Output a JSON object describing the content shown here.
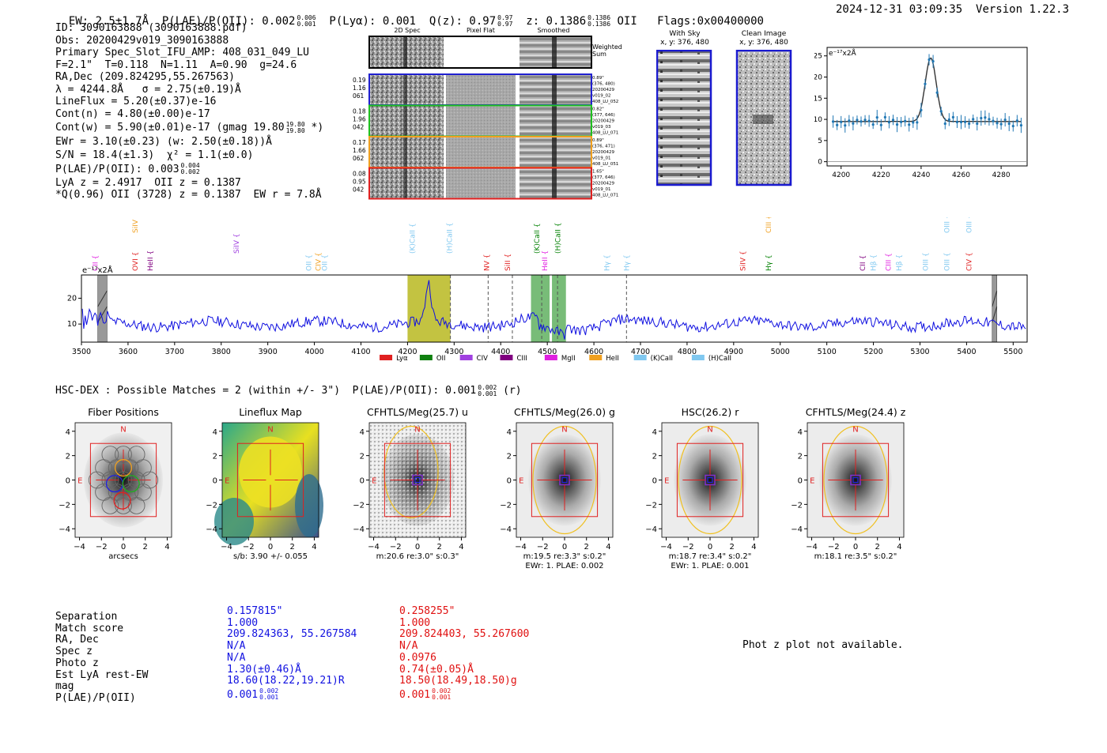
{
  "header": {
    "ew": "EW: 2.5±1.7Å",
    "plae_label": "P(LAE)/P(OII): 0.002",
    "plae_hi": "0.006",
    "plae_lo": "0.001",
    "plya": "P(Lyα): 0.001",
    "qz_label": "Q(z): 0.97",
    "qz_hi": "0.97",
    "qz_lo": "0.97",
    "z_label": "z: 0.1386",
    "z_hi": "0.1386",
    "z_lo": "0.1386",
    "z_line": "OII",
    "flags": "Flags:0x00400000",
    "datetime": "2024-12-31 03:09:35",
    "version": "Version 1.22.3"
  },
  "info": {
    "id": "ID: 3090163888 (3090163888.pdf)",
    "obs": "Obs: 20200429v019_3090163888",
    "primary": "Primary Spec_Slot_IFU_AMP: 408_031_049_LU",
    "params": "F=2.1\"  T=0.118  N=1.11  A=0.90  g=24.6",
    "radec": "RA,Dec (209.824295,55.267563)",
    "lambda": "λ = 4244.8Å   σ = 2.75(±0.19)Å",
    "lineflux": "LineFlux = 5.20(±0.37)e-16",
    "contn": "Cont(n) = 4.80(±0.00)e-17",
    "contw": "Cont(w) = 5.90(±0.01)e-17 (gmag 19.80",
    "contw_hi": "19.80",
    "contw_lo": "19.80",
    "contw_end": "*)",
    "ewr": "EWr = 3.10(±0.23) (w: 2.50(±0.18))Å",
    "sn": "S/N = 18.4(±1.3)  χ² = 1.1(±0.0)",
    "plae": "P(LAE)/P(OII): 0.003",
    "plae_hi": "0.004",
    "plae_lo": "0.002",
    "lya": "LyA z = 2.4917  OII z = 0.1387",
    "q": "*Q(0.96) OII (3728) z = 0.1387  EW r = 7.8Å"
  },
  "cutouts": {
    "col_titles": [
      "2D Spec",
      "Pixel Flat",
      "Smoothed"
    ],
    "weighted": [
      "Weighted",
      "Sum"
    ],
    "rows": [
      {
        "nums": [
          "0.19",
          "1.16",
          "061"
        ],
        "meta": [
          "0.89\"",
          "(376, 480)",
          "20200429",
          "v019_02",
          "408_LU_052"
        ],
        "color": "#2020d0"
      },
      {
        "nums": [
          "0.18",
          "1.96",
          "042"
        ],
        "meta": [
          "0.82\"",
          "(377, 646)",
          "20200429",
          "v019_03",
          "408_LU_071"
        ],
        "color": "#20c020"
      },
      {
        "nums": [
          "0.17",
          "1.66",
          "062"
        ],
        "meta": [
          "0.89\"",
          "(376, 471)",
          "20200429",
          "v019_01",
          "408_LU_051"
        ],
        "color": "#f0a020"
      },
      {
        "nums": [
          "0.08",
          "0.95",
          "042"
        ],
        "meta": [
          "1.65\"",
          "(377, 646)",
          "20200429",
          "v019_01",
          "408_LU_071"
        ],
        "color": "#e02020"
      }
    ],
    "with_sky": [
      "With Sky",
      "x, y: 376, 480"
    ],
    "clean": [
      "Clean Image",
      "x, y: 376, 480"
    ]
  },
  "zoom_plot": {
    "unit": "e⁻¹⁷x2Å",
    "xticks": [
      "4200",
      "4220",
      "4240",
      "4260",
      "4280"
    ],
    "yticks": [
      "0",
      "5",
      "10",
      "15",
      "20",
      "25"
    ],
    "xlim": [
      4193,
      4293
    ],
    "ylim": [
      -1,
      27
    ],
    "peak": 24.5,
    "center": 4244.8,
    "sigma": 2.75,
    "continuum": 9.5
  },
  "chart_data": {
    "type": "line",
    "title": "",
    "ylabel": "e⁻¹⁷x2Å",
    "xlim": [
      3500,
      5530
    ],
    "ylim": [
      3,
      29
    ],
    "xticks": [
      "3500",
      "3600",
      "3700",
      "3800",
      "3900",
      "4000",
      "4100",
      "4200",
      "4300",
      "4400",
      "4500",
      "4600",
      "4700",
      "4800",
      "4900",
      "5000",
      "5100",
      "5200",
      "5300",
      "5400",
      "5500"
    ],
    "yticks": [
      "10",
      "20"
    ],
    "emission_peak": {
      "x": 4244.8,
      "y": 25
    },
    "highlight_bands": [
      {
        "x0": 4200,
        "x1": 4292,
        "color": "#b8b820"
      },
      {
        "x0": 4465,
        "x1": 4505,
        "color": "#60b060"
      },
      {
        "x0": 4510,
        "x1": 4540,
        "color": "#60b060"
      }
    ],
    "masked": [
      {
        "x0": 3535,
        "x1": 3555
      },
      {
        "x0": 5455,
        "x1": 5465
      }
    ],
    "dashed_lines": [
      4292,
      4373,
      4425,
      4488,
      4522,
      4670
    ],
    "line_labels": [
      {
        "x": 3530,
        "label": "CII",
        "color": "#e020e0",
        "row": 0
      },
      {
        "x": 3615,
        "label": "SiIV",
        "color": "#f0a020",
        "row": 2
      },
      {
        "x": 3615,
        "label": "OVI",
        "color": "#e02020",
        "row": 0
      },
      {
        "x": 3648,
        "label": "HeII",
        "color": "#800080",
        "row": 0
      },
      {
        "x": 3833,
        "label": "SiIV",
        "color": "#a040e0",
        "row": 1
      },
      {
        "x": 3988,
        "label": "OII",
        "color": "#80c8f0",
        "row": 0
      },
      {
        "x": 4008,
        "label": "CIV",
        "color": "#f0a020",
        "row": 0
      },
      {
        "x": 4022,
        "label": "OII",
        "color": "#80c8f0",
        "row": 0
      },
      {
        "x": 4210,
        "label": "(K)CaII",
        "color": "#80c8f0",
        "row": 1
      },
      {
        "x": 4290,
        "label": "(H)CaII",
        "color": "#80c8f0",
        "row": 1
      },
      {
        "x": 4370,
        "label": "NV",
        "color": "#e02020",
        "row": 0
      },
      {
        "x": 4415,
        "label": "SiII",
        "color": "#e02020",
        "row": 0
      },
      {
        "x": 4478,
        "label": "(K)CaII",
        "color": "#008000",
        "row": 1
      },
      {
        "x": 4495,
        "label": "HeII",
        "color": "#e020e0",
        "row": 0
      },
      {
        "x": 4523,
        "label": "(H)CaII",
        "color": "#008000",
        "row": 1
      },
      {
        "x": 4628,
        "label": "Hγ",
        "color": "#80c8f0",
        "row": 0
      },
      {
        "x": 4670,
        "label": "Hγ",
        "color": "#80c8f0",
        "row": 0
      },
      {
        "x": 4920,
        "label": "SiIV",
        "color": "#e02020",
        "row": 0
      },
      {
        "x": 4975,
        "label": "CIII",
        "color": "#f0a020",
        "row": 2
      },
      {
        "x": 4975,
        "label": "Hγ",
        "color": "#008000",
        "row": 0
      },
      {
        "x": 5177,
        "label": "CII",
        "color": "#800080",
        "row": 0
      },
      {
        "x": 5200,
        "label": "Hβ",
        "color": "#80c8f0",
        "row": 0
      },
      {
        "x": 5232,
        "label": "CIII",
        "color": "#e020e0",
        "row": 0
      },
      {
        "x": 5255,
        "label": "Hβ",
        "color": "#80c8f0",
        "row": 0
      },
      {
        "x": 5312,
        "label": "OIII",
        "color": "#80c8f0",
        "row": 0
      },
      {
        "x": 5358,
        "label": "OIII",
        "color": "#80c8f0",
        "row": 0
      },
      {
        "x": 5358,
        "label": "OIII",
        "color": "#80c8f0",
        "row": 2
      },
      {
        "x": 5405,
        "label": "CIV",
        "color": "#e02020",
        "row": 0
      },
      {
        "x": 5405,
        "label": "OIII",
        "color": "#80c8f0",
        "row": 2
      }
    ],
    "legend": [
      {
        "label": "Lyα",
        "color": "#e02020"
      },
      {
        "label": "OII",
        "color": "#108010"
      },
      {
        "label": "CIV",
        "color": "#a040e0"
      },
      {
        "label": "CIII",
        "color": "#800080"
      },
      {
        "label": "MgII",
        "color": "#e020e0"
      },
      {
        "label": "HeII",
        "color": "#f0a020"
      },
      {
        "label": "(K)CaII",
        "color": "#80c8f0"
      },
      {
        "label": "(H)CaII",
        "color": "#80c8f0"
      }
    ],
    "series": [
      {
        "name": "spectrum",
        "color": "#1010e0"
      }
    ]
  },
  "hsc": {
    "title": "HSC-DEX : Possible Matches = 2 (within +/- 3\")  P(LAE)/P(OII): 0.001",
    "title_hi": "0.002",
    "title_lo": "0.001",
    "title_end": "(r)",
    "panels": [
      {
        "title": "Fiber Positions",
        "xlabel": "arcsecs",
        "xlabel2": ""
      },
      {
        "title": "Lineflux Map",
        "xlabel": "s/b: 3.90 +/- 0.055",
        "xlabel2": ""
      },
      {
        "title": "CFHTLS/Meg(25.7) u",
        "xlabel": "m:20.6  re:3.0\"  s:0.3\"",
        "xlabel2": ""
      },
      {
        "title": "CFHTLS/Meg(26.0) g",
        "xlabel": "m:19.5  re:3.3\"  s:0.2\"",
        "xlabel2": "EWr: 1. PLAE: 0.002"
      },
      {
        "title": "HSC(26.2) r",
        "xlabel": "m:18.7  re:3.4\"  s:0.2\"",
        "xlabel2": "EWr: 1. PLAE: 0.001"
      },
      {
        "title": "CFHTLS/Meg(24.4) z",
        "xlabel": "m:18.1  re:3.5\"  s:0.2\"",
        "xlabel2": ""
      }
    ],
    "ticks": [
      "4",
      "2",
      "0",
      "−2",
      "−4"
    ],
    "xticks": [
      "−4",
      "−2",
      "0",
      "2",
      "4"
    ],
    "north": "N",
    "east": "E"
  },
  "table": {
    "labels": [
      "Separation",
      "Match score",
      "RA, Dec",
      "Spec z",
      "Photo z",
      "Est LyA rest-EW",
      "mag",
      "P(LAE)/P(OII)"
    ],
    "col1": [
      "0.157815\"",
      "1.000",
      "209.824363, 55.267584",
      "N/A",
      "N/A",
      "1.30(±0.46)Å",
      "18.60(18.22,19.21)R",
      "0.001"
    ],
    "col1_hi": "0.002",
    "col1_lo": "0.001",
    "col2": [
      "0.258255\"",
      "1.000",
      "209.824403, 55.267600",
      "N/A",
      "0.0976",
      "0.74(±0.05)Å",
      "18.50(18.49,18.50)g",
      "0.001"
    ],
    "col2_hi": "0.002",
    "col2_lo": "0.001",
    "phot_z": "Phot z plot not available."
  }
}
